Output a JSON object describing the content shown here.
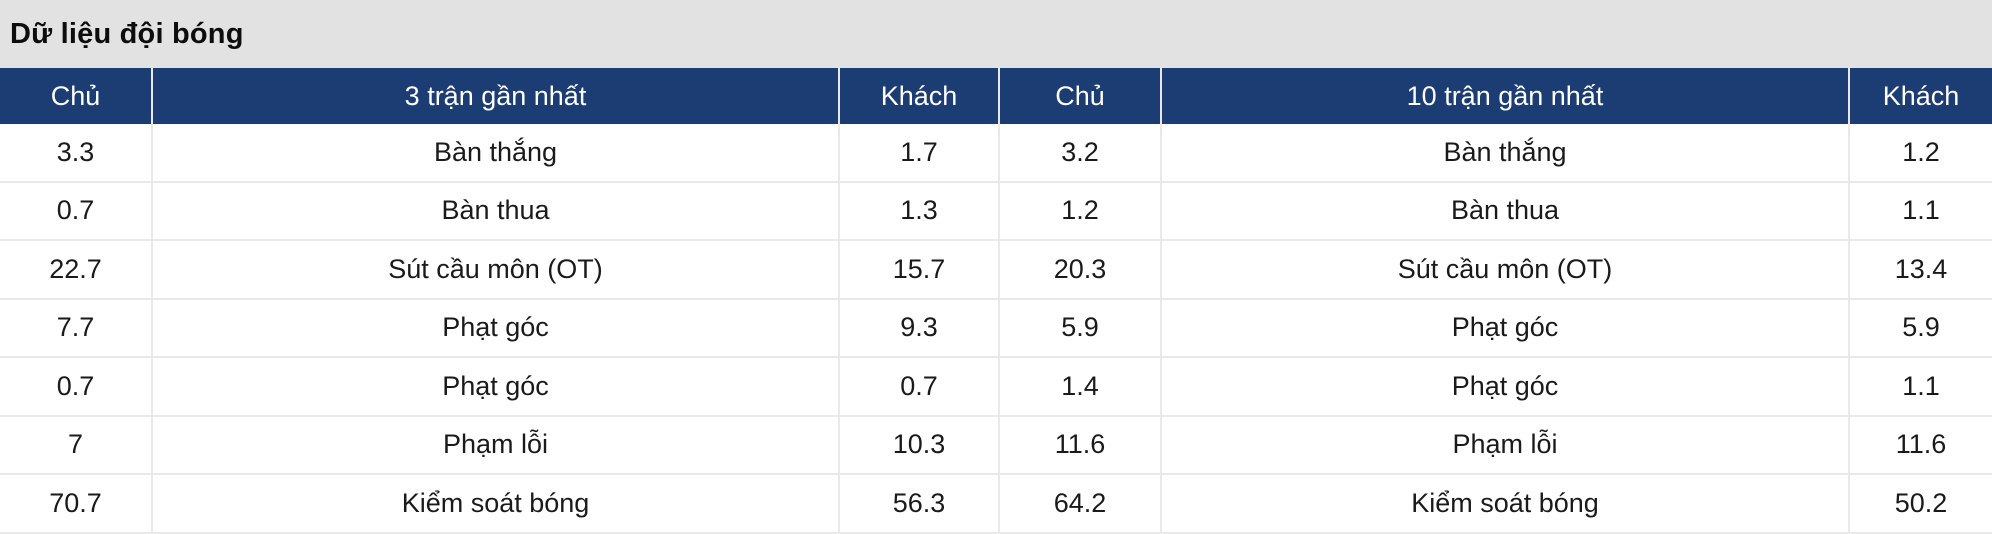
{
  "title": "Dữ liệu đội bóng",
  "colors": {
    "header_bg": "#1c3c74",
    "title_bg": "#e2e2e2",
    "divider": "#e9e9e9",
    "header_text": "#ffffff",
    "body_text": "#1a1a1a"
  },
  "table": {
    "headers": [
      "Chủ",
      "3 trận gần nhất",
      "Khách",
      "Chủ",
      "10 trận gần nhất",
      "Khách"
    ],
    "rows": [
      [
        "3.3",
        "Bàn thắng",
        "1.7",
        "3.2",
        "Bàn thắng",
        "1.2"
      ],
      [
        "0.7",
        "Bàn thua",
        "1.3",
        "1.2",
        "Bàn thua",
        "1.1"
      ],
      [
        "22.7",
        "Sút cầu môn (OT)",
        "15.7",
        "20.3",
        "Sút cầu môn (OT)",
        "13.4"
      ],
      [
        "7.7",
        "Phạt góc",
        "9.3",
        "5.9",
        "Phạt góc",
        "5.9"
      ],
      [
        "0.7",
        "Phạt góc",
        "0.7",
        "1.4",
        "Phạt góc",
        "1.1"
      ],
      [
        "7",
        "Phạm lỗi",
        "10.3",
        "11.6",
        "Phạm lỗi",
        "11.6"
      ],
      [
        "70.7",
        "Kiểm soát bóng",
        "56.3",
        "64.2",
        "Kiểm soát bóng",
        "50.2"
      ]
    ]
  }
}
